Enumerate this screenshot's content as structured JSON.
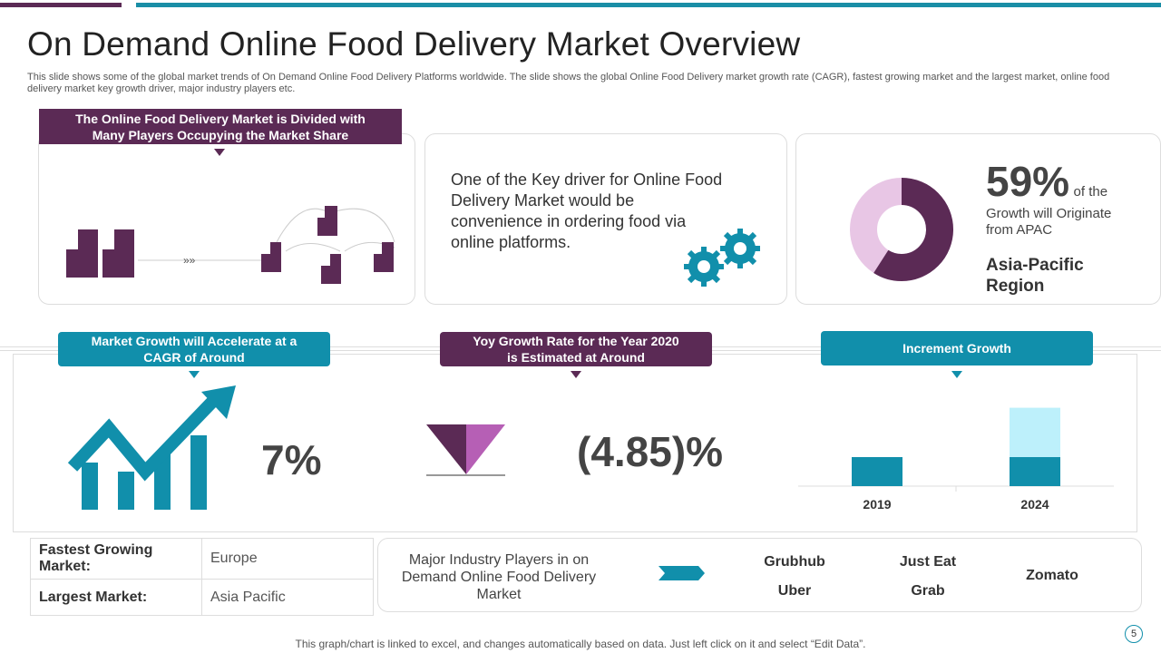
{
  "colors": {
    "purple": "#5b2a55",
    "teal": "#118fab",
    "light_teal": "#bdf0fb",
    "pink": "#e8c6e5",
    "magenta": "#b65fb5"
  },
  "title": "On Demand Online Food Delivery Market Overview",
  "subtitle": "This slide shows some of the global market trends of On Demand Online Food Delivery Platforms worldwide. The slide shows the global Online Food Delivery market growth rate (CAGR),  fastest growing market and the largest market, online food delivery  market key  growth driver,  major industry players etc.",
  "market_divided": {
    "label": "The Online Food Delivery Market is Divided with Many Players Occupying the Market Share",
    "icons": [
      "buildings-icon",
      "arrow-chevrons-icon",
      "network-buildings-icon"
    ]
  },
  "driver": {
    "text": "One of the Key driver for Online Food Delivery Market would be convenience in ordering food via online platforms.",
    "icon": "gears-icon"
  },
  "apac": {
    "percent": "59%",
    "suffix": "of the",
    "desc": "Growth will Originate from APAC",
    "region": "Asia-Pacific Region",
    "share": 59
  },
  "cagr": {
    "label": "Market Growth will Accelerate at a CAGR of Around",
    "value": "7%",
    "icon": "growth-chart-arrow-icon"
  },
  "yoy": {
    "label": "Yoy Growth Rate for the Year 2020 is Estimated at Around",
    "value": "(4.85)%",
    "icon": "down-triangle-icon"
  },
  "increment": {
    "label": "Increment Growth"
  },
  "chart_data": {
    "type": "bar",
    "stacked": true,
    "categories": [
      "2019",
      "2024"
    ],
    "series": [
      {
        "values": [
          1,
          1
        ],
        "color": "#118fab"
      },
      {
        "values": [
          0,
          1.7
        ],
        "color": "#bdf0fb"
      }
    ],
    "grid": false
  },
  "markets": [
    {
      "key": "Fastest Growing Market:",
      "value": "Europe"
    },
    {
      "key": "Largest Market:",
      "value": "Asia Pacific"
    }
  ],
  "players": {
    "label": "Major Industry  Players in on Demand Online Food Delivery Market",
    "names": [
      "Grubhub",
      "Uber",
      "Just Eat",
      "Grab",
      "Zomato"
    ]
  },
  "footer": "This graph/chart is linked to excel, and changes automatically based on data. Just left click on it and select “Edit Data”.",
  "page_number": "5"
}
